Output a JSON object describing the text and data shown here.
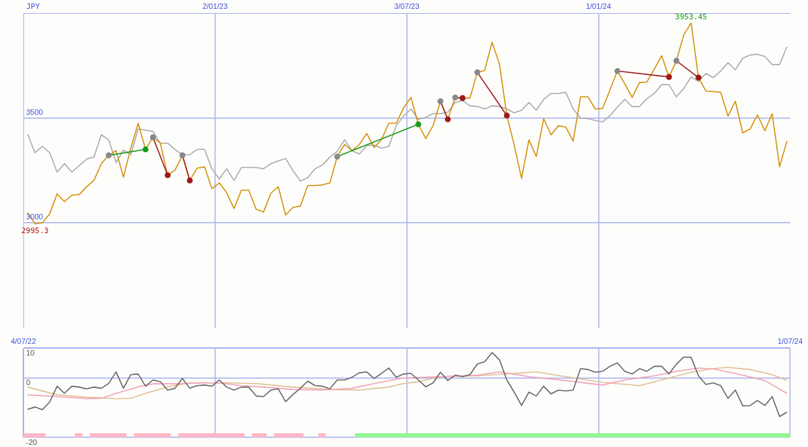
{
  "chart_data": [
    {
      "type": "line",
      "ylabel": "JPY",
      "grid": true,
      "legend": false,
      "marker": "none",
      "annotations": [
        {
          "text": "3953.45",
          "x": "2024-03-29",
          "y": 3953.45
        },
        {
          "text": "2995.3",
          "x": "2022-07-15",
          "y": 2995.3
        }
      ],
      "xlim": [
        "2022-07-04",
        "2024-07-01"
      ],
      "xticks": [
        {
          "value": "2023-01-02",
          "label": "2/01/23"
        },
        {
          "value": "2023-07-03",
          "label": "3/07/23"
        },
        {
          "value": "2024-01-01",
          "label": "1/01/24"
        }
      ],
      "ylim": [
        2500,
        4000
      ],
      "yticks": [
        3000,
        3500
      ],
      "x": [
        "2022-07-08",
        "2022-07-15",
        "2022-07-22",
        "2022-07-29",
        "2022-08-05",
        "2022-08-12",
        "2022-08-19",
        "2022-08-26",
        "2022-09-02",
        "2022-09-09",
        "2022-09-16",
        "2022-09-23",
        "2022-09-30",
        "2022-10-07",
        "2022-10-14",
        "2022-10-21",
        "2022-10-28",
        "2022-11-04",
        "2022-11-11",
        "2022-11-18",
        "2022-11-25",
        "2022-12-02",
        "2022-12-09",
        "2022-12-16",
        "2022-12-23",
        "2022-12-30",
        "2023-01-06",
        "2023-01-13",
        "2023-01-20",
        "2023-01-27",
        "2023-02-03",
        "2023-02-10",
        "2023-02-17",
        "2023-02-24",
        "2023-03-03",
        "2023-03-10",
        "2023-03-17",
        "2023-03-24",
        "2023-03-31",
        "2023-04-07",
        "2023-04-14",
        "2023-04-21",
        "2023-04-28",
        "2023-05-05",
        "2023-05-12",
        "2023-05-19",
        "2023-05-26",
        "2023-06-02",
        "2023-06-09",
        "2023-06-16",
        "2023-06-23",
        "2023-06-30",
        "2023-07-07",
        "2023-07-14",
        "2023-07-21",
        "2023-07-28",
        "2023-08-04",
        "2023-08-11",
        "2023-08-18",
        "2023-08-25",
        "2023-09-01",
        "2023-09-08",
        "2023-09-15",
        "2023-09-22",
        "2023-09-29",
        "2023-10-06",
        "2023-10-13",
        "2023-10-20",
        "2023-10-27",
        "2023-11-03",
        "2023-11-10",
        "2023-11-17",
        "2023-11-24",
        "2023-12-01",
        "2023-12-08",
        "2023-12-15",
        "2023-12-22",
        "2023-12-29",
        "2024-01-05",
        "2024-01-12",
        "2024-01-19",
        "2024-01-26",
        "2024-02-02",
        "2024-02-09",
        "2024-02-16",
        "2024-02-23",
        "2024-03-01",
        "2024-03-08",
        "2024-03-15",
        "2024-03-22",
        "2024-03-29",
        "2024-04-05",
        "2024-04-12",
        "2024-04-19",
        "2024-04-26",
        "2024-05-03",
        "2024-05-10",
        "2024-05-17",
        "2024-05-24",
        "2024-05-31",
        "2024-06-07",
        "2024-06-14",
        "2024-06-21",
        "2024-06-28"
      ],
      "series": [
        {
          "color": "#aaaaaa",
          "values": [
            3423,
            3334,
            3365,
            3334,
            3242,
            3282,
            3242,
            3273,
            3304,
            3313,
            3420,
            3396,
            3288,
            3347,
            3325,
            3448,
            3442,
            3436,
            3380,
            3380,
            3350,
            3325,
            3325,
            3350,
            3350,
            3258,
            3209,
            3258,
            3202,
            3264,
            3264,
            3264,
            3258,
            3282,
            3295,
            3307,
            3249,
            3199,
            3215,
            3258,
            3276,
            3313,
            3341,
            3396,
            3344,
            3328,
            3368,
            3371,
            3356,
            3365,
            3463,
            3509,
            3543,
            3494,
            3503,
            3521,
            3521,
            3528,
            3574,
            3583,
            3558,
            3555,
            3543,
            3558,
            3555,
            3543,
            3525,
            3537,
            3574,
            3537,
            3589,
            3617,
            3617,
            3623,
            3543,
            3500,
            3497,
            3488,
            3482,
            3512,
            3552,
            3589,
            3555,
            3555,
            3592,
            3617,
            3659,
            3659,
            3601,
            3641,
            3696,
            3675,
            3712,
            3693,
            3724,
            3764,
            3730,
            3785,
            3801,
            3804,
            3794,
            3755,
            3755,
            3840
          ]
        },
        {
          "color": "#d4900a",
          "values": [
            3049,
            2995.3,
            3000,
            3043,
            3138,
            3101,
            3132,
            3135,
            3172,
            3202,
            3282,
            3322,
            3344,
            3218,
            3356,
            3475,
            3350,
            3408,
            3380,
            3227,
            3252,
            3322,
            3202,
            3261,
            3267,
            3163,
            3190,
            3144,
            3068,
            3156,
            3156,
            3065,
            3052,
            3141,
            3172,
            3037,
            3074,
            3080,
            3178,
            3178,
            3181,
            3190,
            3316,
            3374,
            3344,
            3374,
            3426,
            3359,
            3396,
            3475,
            3475,
            3549,
            3598,
            3470,
            3402,
            3463,
            3580,
            3494,
            3598,
            3595,
            3595,
            3718,
            3727,
            3862,
            3758,
            3512,
            3371,
            3212,
            3396,
            3316,
            3497,
            3420,
            3463,
            3457,
            3390,
            3601,
            3601,
            3543,
            3546,
            3635,
            3724,
            3663,
            3598,
            3669,
            3672,
            3733,
            3797,
            3696,
            3773,
            3896,
            3953.45,
            3693,
            3629,
            3626,
            3623,
            3509,
            3580,
            3429,
            3448,
            3515,
            3439,
            3521,
            3267,
            3390
          ]
        },
        {
          "x": [
            "2022-09-23",
            "2022-10-28"
          ],
          "values": [
            3322,
            3350
          ],
          "color": "#1a9a1a",
          "colors": [
            "#888888",
            "#1a9a1a"
          ],
          "marker": "circle"
        },
        {
          "x": [
            "2022-11-04",
            "2022-11-18"
          ],
          "values": [
            3408,
            3227
          ],
          "color": "#a01818",
          "colors": [
            "#888888",
            "#a01818"
          ],
          "marker": "circle"
        },
        {
          "x": [
            "2022-12-02",
            "2022-12-09"
          ],
          "values": [
            3322,
            3202
          ],
          "color": "#a01818",
          "colors": [
            "#888888",
            "#a01818"
          ],
          "marker": "circle"
        },
        {
          "x": [
            "2023-04-28",
            "2023-07-14"
          ],
          "values": [
            3316,
            3470
          ],
          "color": "#1a9a1a",
          "colors": [
            "#888888",
            "#1a9a1a"
          ],
          "marker": "circle"
        },
        {
          "x": [
            "2023-08-04",
            "2023-08-11"
          ],
          "values": [
            3580,
            3494
          ],
          "color": "#a01818",
          "colors": [
            "#888888",
            "#a01818"
          ],
          "marker": "circle"
        },
        {
          "x": [
            "2023-08-18",
            "2023-08-25"
          ],
          "values": [
            3598,
            3595
          ],
          "color": "#a01818",
          "colors": [
            "#888888",
            "#a01818"
          ],
          "marker": "circle"
        },
        {
          "x": [
            "2023-09-08",
            "2023-10-06"
          ],
          "values": [
            3718,
            3512
          ],
          "color": "#a01818",
          "colors": [
            "#888888",
            "#a01818"
          ],
          "marker": "circle"
        },
        {
          "x": [
            "2024-01-19",
            "2024-03-08"
          ],
          "values": [
            3724,
            3696
          ],
          "color": "#a01818",
          "colors": [
            "#888888",
            "#a01818"
          ],
          "marker": "circle"
        },
        {
          "x": [
            "2024-03-15",
            "2024-04-05"
          ],
          "values": [
            3773,
            3693
          ],
          "color": "#a01818",
          "colors": [
            "#888888",
            "#a01818"
          ],
          "marker": "circle"
        }
      ]
    },
    {
      "type": "line",
      "grid": true,
      "legend": false,
      "marker": "none",
      "xlim": [
        "2022-07-04",
        "2024-07-01"
      ],
      "xticks": [
        {
          "value": "2022-07-04",
          "label": "4/07/22"
        },
        {
          "value": "2023-01-02",
          "label": null
        },
        {
          "value": "2023-07-03",
          "label": null
        },
        {
          "value": "2024-01-01",
          "label": null
        },
        {
          "value": "2024-07-01",
          "label": "1/07/24"
        }
      ],
      "ylim": [
        -20,
        10
      ],
      "yticks": [
        -20,
        0,
        10
      ],
      "bands": [
        {
          "axis": "x",
          "from": "2022-07-04",
          "to": "2022-07-25",
          "color": "#ffb6c8"
        },
        {
          "axis": "x",
          "from": "2022-08-22",
          "to": "2022-08-29",
          "color": "#ffb6c8"
        },
        {
          "axis": "x",
          "from": "2022-09-05",
          "to": "2022-10-10",
          "color": "#ffb6c8"
        },
        {
          "axis": "x",
          "from": "2022-10-17",
          "to": "2022-11-21",
          "color": "#ffb6c8"
        },
        {
          "axis": "x",
          "from": "2022-11-28",
          "to": "2023-01-30",
          "color": "#ffb6c8"
        },
        {
          "axis": "x",
          "from": "2023-02-06",
          "to": "2023-02-20",
          "color": "#ffb6c8"
        },
        {
          "axis": "x",
          "from": "2023-02-27",
          "to": "2023-03-27",
          "color": "#ffb6c8"
        },
        {
          "axis": "x",
          "from": "2023-04-10",
          "to": "2023-04-17",
          "color": "#ffb6c8"
        },
        {
          "axis": "x",
          "from": "2023-05-15",
          "to": "2024-07-01",
          "color": "#90f890"
        }
      ],
      "x": [
        "2022-07-08",
        "2022-07-15",
        "2022-07-22",
        "2022-07-29",
        "2022-08-05",
        "2022-08-12",
        "2022-08-19",
        "2022-08-26",
        "2022-09-02",
        "2022-09-09",
        "2022-09-16",
        "2022-09-23",
        "2022-09-30",
        "2022-10-07",
        "2022-10-14",
        "2022-10-21",
        "2022-10-28",
        "2022-11-04",
        "2022-11-11",
        "2022-11-18",
        "2022-11-25",
        "2022-12-02",
        "2022-12-09",
        "2022-12-16",
        "2022-12-23",
        "2022-12-30",
        "2023-01-06",
        "2023-01-13",
        "2023-01-20",
        "2023-01-27",
        "2023-02-03",
        "2023-02-10",
        "2023-02-17",
        "2023-02-24",
        "2023-03-03",
        "2023-03-10",
        "2023-03-17",
        "2023-03-24",
        "2023-03-31",
        "2023-04-07",
        "2023-04-14",
        "2023-04-21",
        "2023-04-28",
        "2023-05-05",
        "2023-05-12",
        "2023-05-19",
        "2023-05-26",
        "2023-06-02",
        "2023-06-09",
        "2023-06-16",
        "2023-06-23",
        "2023-06-30",
        "2023-07-07",
        "2023-07-14",
        "2023-07-21",
        "2023-07-28",
        "2023-08-04",
        "2023-08-11",
        "2023-08-18",
        "2023-08-25",
        "2023-09-01",
        "2023-09-08",
        "2023-09-15",
        "2023-09-22",
        "2023-09-29",
        "2023-10-06",
        "2023-10-13",
        "2023-10-20",
        "2023-10-27",
        "2023-11-03",
        "2023-11-10",
        "2023-11-17",
        "2023-11-24",
        "2023-12-01",
        "2023-12-08",
        "2023-12-15",
        "2023-12-22",
        "2023-12-29",
        "2024-01-05",
        "2024-01-12",
        "2024-01-19",
        "2024-01-26",
        "2024-02-02",
        "2024-02-09",
        "2024-02-16",
        "2024-02-23",
        "2024-03-01",
        "2024-03-08",
        "2024-03-15",
        "2024-03-22",
        "2024-03-29",
        "2024-04-05",
        "2024-04-12",
        "2024-04-19",
        "2024-04-26",
        "2024-05-03",
        "2024-05-10",
        "2024-05-17",
        "2024-05-24",
        "2024-05-31",
        "2024-06-07",
        "2024-06-14",
        "2024-06-21",
        "2024-06-28"
      ],
      "series": [
        {
          "color": "#e0c090",
          "x": [
            "2022-07-08",
            "2022-08-05",
            "2022-09-02",
            "2022-09-30",
            "2022-10-14",
            "2022-10-28",
            "2022-11-18",
            "2022-12-09",
            "2023-01-13",
            "2023-02-10",
            "2023-03-17",
            "2023-04-21",
            "2023-05-19",
            "2023-06-16",
            "2023-06-30",
            "2023-07-14",
            "2023-08-04",
            "2023-09-08",
            "2023-10-13",
            "2023-11-03",
            "2023-12-01",
            "2024-01-05",
            "2024-02-09",
            "2024-03-01",
            "2024-03-29",
            "2024-04-19",
            "2024-05-03",
            "2024-05-24",
            "2024-06-14",
            "2024-06-28"
          ],
          "values": [
            -3.1,
            -5.7,
            -6.5,
            -7.0,
            -6.9,
            -5.2,
            -3.0,
            -1.7,
            -1.7,
            -1.9,
            -3.1,
            -3.9,
            -4.1,
            -3.1,
            -1.9,
            -1.3,
            0.4,
            0.7,
            1.5,
            2.0,
            0.4,
            -1.5,
            -2.6,
            -0.7,
            1.9,
            3.1,
            3.5,
            2.8,
            1.1,
            -0.9
          ]
        },
        {
          "color": "#f4a0b8",
          "x": [
            "2022-07-08",
            "2022-08-05",
            "2022-09-02",
            "2022-09-16",
            "2022-09-30",
            "2022-10-21",
            "2022-11-04",
            "2022-11-25",
            "2022-12-23",
            "2023-01-06",
            "2023-01-27",
            "2023-02-17",
            "2023-03-17",
            "2023-04-14",
            "2023-05-12",
            "2023-06-02",
            "2023-06-30",
            "2023-08-04",
            "2023-09-08",
            "2023-09-29",
            "2023-10-27",
            "2023-12-01",
            "2024-01-05",
            "2024-01-26",
            "2024-02-23",
            "2024-03-15",
            "2024-04-05",
            "2024-04-19",
            "2024-05-10",
            "2024-06-07",
            "2024-06-28"
          ],
          "values": [
            -5.7,
            -6.3,
            -7.0,
            -6.9,
            -5.2,
            -3.0,
            -2.0,
            -2.0,
            -1.7,
            -1.7,
            -2.6,
            -3.1,
            -3.9,
            -4.1,
            -3.5,
            -1.9,
            0,
            0.4,
            0.9,
            2.0,
            0.4,
            -0.9,
            -2.4,
            -0.7,
            0.7,
            2.2,
            3.3,
            3.0,
            1.5,
            -0.9,
            -5.2
          ]
        },
        {
          "color": "#666666",
          "values": [
            -10.6,
            -9.8,
            -10.7,
            -8.1,
            -2.8,
            -5.2,
            -2.8,
            -3.1,
            -3.7,
            -3.1,
            -3.5,
            -1.9,
            2.0,
            -3.5,
            1.1,
            1.3,
            -2.8,
            -0.7,
            -1.3,
            -4.1,
            -3.5,
            -0.2,
            -3.5,
            -2.6,
            -2.4,
            -2.8,
            -0.7,
            -3.1,
            -4.1,
            -3.1,
            -3.1,
            -6.1,
            -6.3,
            -4.1,
            -3.7,
            -8.0,
            -5.6,
            -3.5,
            -1.1,
            -2.6,
            -2.8,
            -3.7,
            -0.7,
            -0.7,
            0.2,
            1.7,
            2.0,
            -0.2,
            1.5,
            3.3,
            0.2,
            1.3,
            1.5,
            -0.7,
            -3.0,
            -1.7,
            1.9,
            -0.9,
            0.9,
            0.4,
            1.1,
            4.6,
            5.4,
            8.5,
            6.1,
            -0.7,
            -4.8,
            -9.3,
            -4.8,
            -6.1,
            -2.8,
            -5.4,
            -4.1,
            -4.4,
            -4.1,
            3.1,
            2.8,
            1.9,
            2.2,
            3.9,
            5.0,
            2.2,
            1.3,
            3.1,
            2.2,
            3.9,
            3.9,
            1.3,
            4.6,
            7.0,
            6.9,
            0.7,
            -2.2,
            -1.7,
            -2.6,
            -6.9,
            -4.1,
            -9.4,
            -9.3,
            -7.6,
            -9.3,
            -6.3,
            -13.0,
            -11.5
          ]
        }
      ]
    }
  ]
}
